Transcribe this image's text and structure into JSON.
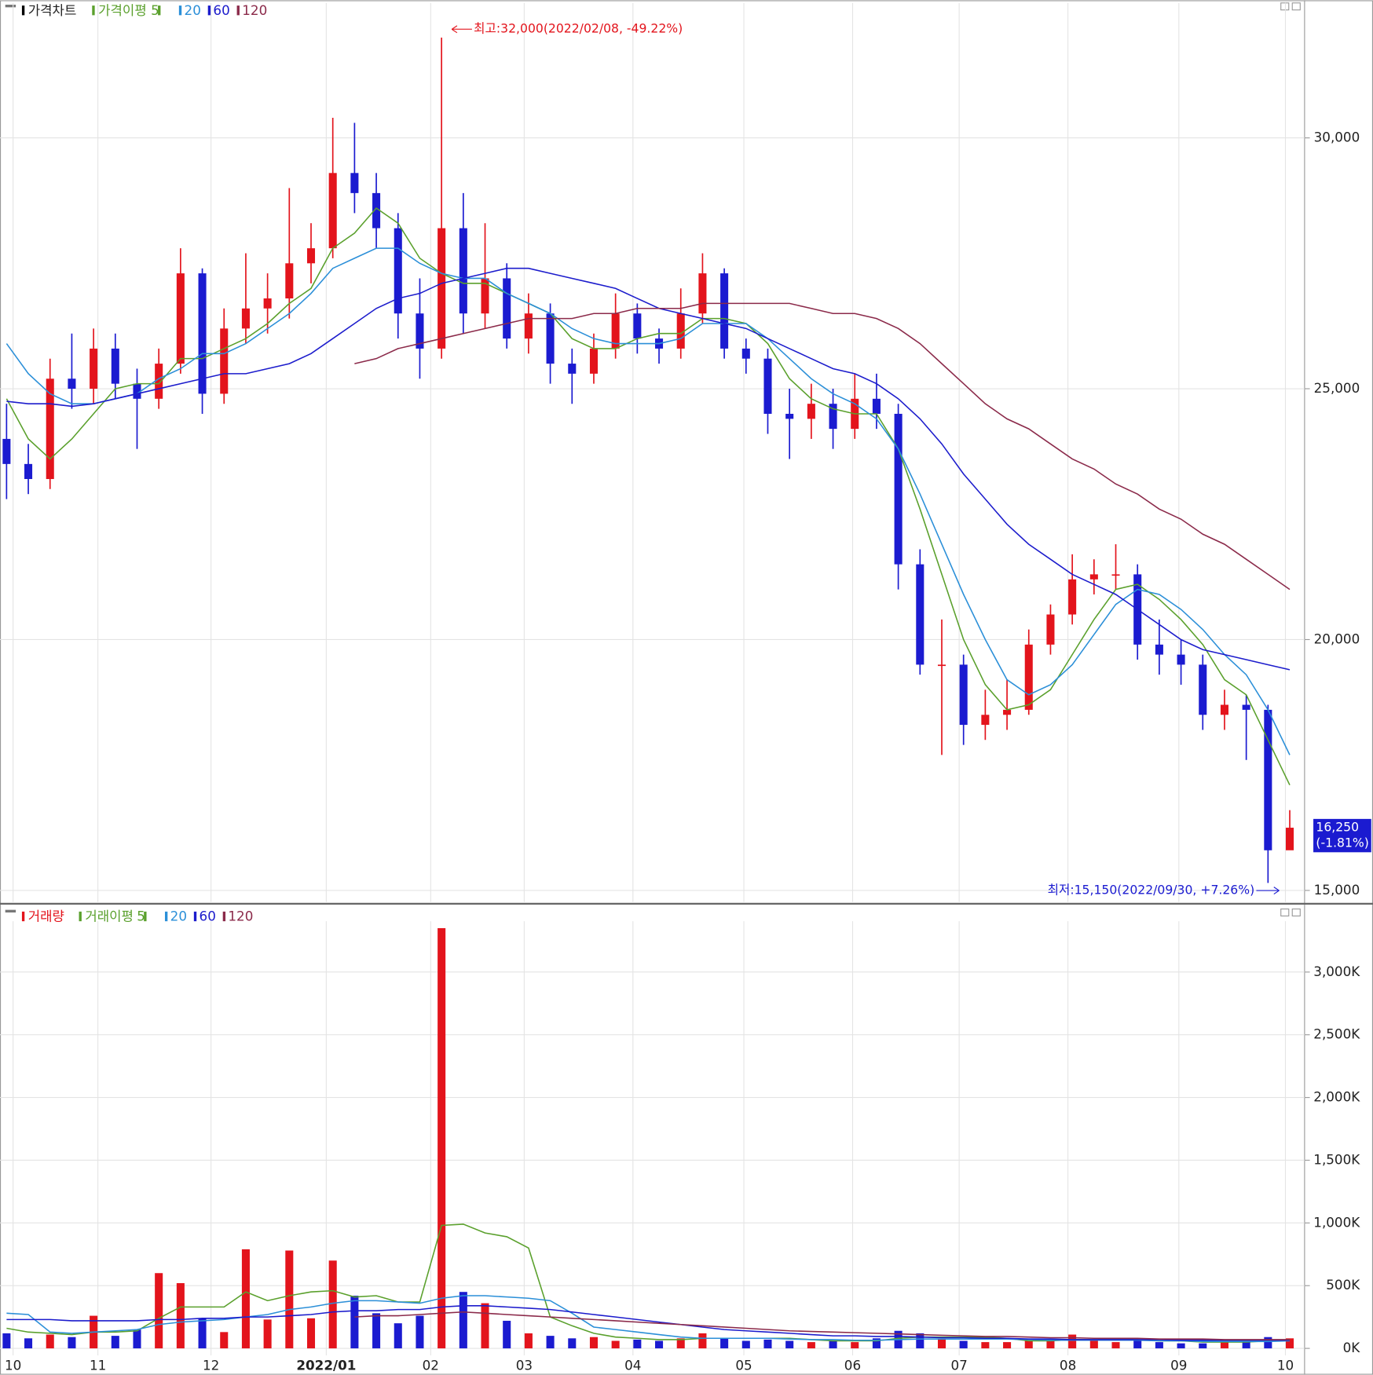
{
  "chart_data": [
    {
      "type": "candlestick",
      "title": "가격차트",
      "ma_title": "가격이평",
      "xlim": [
        -0.1,
        59.6
      ],
      "open": [
        24000,
        23500,
        23200,
        25200,
        25000,
        25800,
        25100,
        24800,
        25500,
        27300,
        24900,
        26200,
        26600,
        26800,
        27500,
        27800,
        29300,
        28900,
        28200,
        26500,
        25800,
        28200,
        26500,
        27200,
        26000,
        26500,
        25500,
        25300,
        25800,
        26500,
        26000,
        25800,
        26500,
        27300,
        25800,
        25600,
        24500,
        24400,
        24700,
        24200,
        24800,
        24500,
        21500,
        19500,
        19500,
        18300,
        18500,
        18600,
        19900,
        20500,
        21200,
        21300,
        21300,
        19900,
        19700,
        19500,
        18500,
        18700,
        18600,
        15800
      ],
      "high": [
        24700,
        23900,
        25600,
        26100,
        26200,
        26100,
        25400,
        25800,
        27800,
        27400,
        26600,
        27700,
        27300,
        29000,
        28300,
        30400,
        30300,
        29300,
        28500,
        27200,
        32000,
        28900,
        28300,
        27500,
        26900,
        26700,
        25800,
        26100,
        26900,
        26700,
        26200,
        27000,
        27700,
        27400,
        26000,
        25800,
        25000,
        25100,
        25000,
        25300,
        25300,
        24700,
        21800,
        20400,
        19700,
        19000,
        19200,
        20200,
        20700,
        21700,
        21600,
        21900,
        21500,
        20400,
        20000,
        19700,
        19000,
        18900,
        18700,
        16600
      ],
      "low": [
        22800,
        22900,
        23000,
        24600,
        24700,
        24800,
        23800,
        24600,
        25300,
        24500,
        24700,
        25900,
        26100,
        26400,
        27100,
        27600,
        28500,
        27800,
        26000,
        25200,
        25600,
        26100,
        26200,
        25800,
        25700,
        25100,
        24700,
        25100,
        25600,
        25700,
        25500,
        25600,
        26300,
        25600,
        25300,
        24100,
        23600,
        24000,
        23800,
        24000,
        24200,
        21000,
        19300,
        17700,
        17900,
        18000,
        18200,
        18500,
        19700,
        20300,
        20900,
        21000,
        19600,
        19300,
        19100,
        18200,
        18200,
        17600,
        15150,
        15900
      ],
      "close": [
        23500,
        23200,
        25200,
        25000,
        25800,
        25100,
        24800,
        25500,
        27300,
        24900,
        26200,
        26600,
        26800,
        27500,
        27800,
        29300,
        28900,
        28200,
        26500,
        25800,
        28200,
        26500,
        27200,
        26000,
        26500,
        25500,
        25300,
        25800,
        26500,
        26000,
        25800,
        26500,
        27300,
        25800,
        25600,
        24500,
        24400,
        24700,
        24200,
        24800,
        24500,
        21500,
        19500,
        19500,
        18300,
        18500,
        18600,
        19900,
        20500,
        21200,
        21300,
        21300,
        19900,
        19700,
        19500,
        18500,
        18700,
        18600,
        15800,
        16250
      ],
      "up_color": "#e3141c",
      "down_color": "#1b1bd0",
      "series": [
        {
          "name": "5",
          "color": "#5aa02c",
          "values": [
            24800,
            24000,
            23600,
            24000,
            24500,
            25000,
            25100,
            25100,
            25600,
            25600,
            25800,
            26000,
            26300,
            26700,
            27000,
            27800,
            28100,
            28600,
            28300,
            27600,
            27300,
            27100,
            27100,
            26900,
            26700,
            26500,
            26000,
            25800,
            25800,
            26000,
            26100,
            26100,
            26400,
            26400,
            26300,
            25900,
            25200,
            24800,
            24600,
            24500,
            24500,
            23800,
            22600,
            21300,
            20000,
            19100,
            18600,
            18700,
            19000,
            19700,
            20400,
            21000,
            21100,
            20800,
            20400,
            19900,
            19200,
            18900,
            18000,
            17100
          ]
        },
        {
          "name": "20",
          "color": "#2b8fd8",
          "values": [
            25900,
            25300,
            24900,
            24700,
            24700,
            24800,
            24900,
            25200,
            25400,
            25700,
            25700,
            25900,
            26200,
            26500,
            26900,
            27400,
            27600,
            27800,
            27800,
            27500,
            27300,
            27200,
            27200,
            26900,
            26700,
            26500,
            26200,
            26000,
            25900,
            25900,
            25900,
            26000,
            26300,
            26300,
            26300,
            26000,
            25600,
            25200,
            24900,
            24700,
            24400,
            23800,
            22900,
            21900,
            20900,
            20000,
            19200,
            18900,
            19100,
            19500,
            20100,
            20700,
            21000,
            20900,
            20600,
            20200,
            19700,
            19300,
            18600,
            17700
          ]
        },
        {
          "name": "60",
          "color": "#1c1ccc",
          "values": [
            24750,
            24700,
            24700,
            24650,
            24700,
            24800,
            24900,
            25000,
            25100,
            25200,
            25300,
            25300,
            25400,
            25500,
            25700,
            26000,
            26300,
            26600,
            26800,
            26900,
            27100,
            27200,
            27300,
            27400,
            27400,
            27300,
            27200,
            27100,
            27000,
            26800,
            26600,
            26500,
            26400,
            26300,
            26200,
            26000,
            25800,
            25600,
            25400,
            25300,
            25100,
            24800,
            24400,
            23900,
            23300,
            22800,
            22300,
            21900,
            21600,
            21300,
            21100,
            20900,
            20600,
            20300,
            20000,
            19800,
            19700,
            19600,
            19500,
            19400
          ]
        },
        {
          "name": "120",
          "color": "#8b2a4a",
          "values": [
            null,
            null,
            null,
            null,
            null,
            null,
            null,
            null,
            null,
            null,
            null,
            null,
            null,
            null,
            null,
            null,
            25500,
            25600,
            25800,
            25900,
            26000,
            26100,
            26200,
            26300,
            26400,
            26400,
            26400,
            26500,
            26500,
            26600,
            26600,
            26600,
            26700,
            26700,
            26700,
            26700,
            26700,
            26600,
            26500,
            26500,
            26400,
            26200,
            25900,
            25500,
            25100,
            24700,
            24400,
            24200,
            23900,
            23600,
            23400,
            23100,
            22900,
            22600,
            22400,
            22100,
            21900,
            21600,
            21300,
            21000
          ]
        }
      ],
      "ylim": [
        14770,
        32690
      ],
      "yticks": [
        {
          "value": 15000,
          "label": "15,000"
        },
        {
          "value": 20000,
          "label": "20,000"
        },
        {
          "value": 25000,
          "label": "25,000"
        },
        {
          "value": 30000,
          "label": "30,000"
        }
      ],
      "annotations": [
        "최고:32,000(2022/02/08, -49.22%)",
        "최저:15,150(2022/09/30, +7.26%)"
      ],
      "last_price": {
        "value": 16250,
        "label": "16,250",
        "change": "(-1.81%)"
      }
    },
    {
      "type": "bar",
      "title": "거래량",
      "ma_title": "거래이평",
      "values": [
        120,
        80,
        110,
        90,
        260,
        100,
        150,
        600,
        520,
        240,
        130,
        790,
        230,
        780,
        240,
        700,
        420,
        280,
        200,
        260,
        3350,
        450,
        360,
        220,
        120,
        100,
        80,
        90,
        60,
        70,
        60,
        80,
        120,
        80,
        60,
        70,
        60,
        50,
        60,
        50,
        80,
        140,
        120,
        80,
        60,
        50,
        50,
        60,
        70,
        110,
        60,
        50,
        70,
        50,
        40,
        40,
        50,
        60,
        90,
        80
      ],
      "series": [
        {
          "name": "5",
          "color": "#5aa02c",
          "values": [
            160,
            130,
            120,
            110,
            130,
            130,
            140,
            240,
            330,
            330,
            330,
            450,
            380,
            420,
            450,
            460,
            410,
            420,
            370,
            370,
            980,
            990,
            920,
            890,
            800,
            250,
            180,
            120,
            90,
            80,
            70,
            70,
            80,
            80,
            80,
            80,
            80,
            70,
            60,
            60,
            60,
            80,
            90,
            90,
            90,
            90,
            80,
            60,
            60,
            70,
            70,
            70,
            70,
            60,
            60,
            50,
            50,
            50,
            60,
            70
          ]
        },
        {
          "name": "20",
          "color": "#2b8fd8",
          "values": [
            280,
            270,
            130,
            120,
            130,
            140,
            150,
            190,
            210,
            220,
            230,
            250,
            270,
            310,
            330,
            360,
            380,
            380,
            370,
            360,
            400,
            420,
            420,
            410,
            400,
            380,
            280,
            170,
            150,
            130,
            110,
            90,
            80,
            80,
            80,
            80,
            75,
            70,
            70,
            65,
            65,
            70,
            75,
            75,
            75,
            75,
            75,
            70,
            65,
            65,
            65,
            65,
            65,
            60,
            60,
            55,
            55,
            55,
            55,
            60
          ]
        },
        {
          "name": "60",
          "color": "#1c1ccc",
          "values": [
            230,
            230,
            230,
            220,
            220,
            220,
            220,
            230,
            230,
            240,
            240,
            250,
            250,
            260,
            270,
            290,
            300,
            300,
            310,
            310,
            330,
            340,
            340,
            330,
            320,
            310,
            290,
            270,
            250,
            230,
            210,
            190,
            170,
            150,
            140,
            130,
            120,
            110,
            100,
            100,
            95,
            95,
            90,
            85,
            85,
            80,
            80,
            75,
            75,
            70,
            70,
            70,
            70,
            70,
            65,
            65,
            65,
            65,
            65,
            65
          ]
        },
        {
          "name": "120",
          "color": "#8b2a4a",
          "values": [
            null,
            null,
            null,
            null,
            null,
            null,
            null,
            null,
            null,
            null,
            null,
            null,
            null,
            null,
            null,
            null,
            250,
            260,
            260,
            270,
            280,
            290,
            280,
            270,
            260,
            250,
            240,
            230,
            220,
            210,
            200,
            190,
            180,
            170,
            160,
            150,
            140,
            135,
            130,
            125,
            120,
            115,
            110,
            105,
            100,
            95,
            95,
            90,
            85,
            85,
            80,
            80,
            80,
            75,
            75,
            75,
            70,
            70,
            70,
            70
          ]
        }
      ],
      "ylim": [
        -56,
        3405
      ],
      "yticks": [
        {
          "value": 0,
          "label": "0K"
        },
        {
          "value": 500,
          "label": "500K"
        },
        {
          "value": 1000,
          "label": "1,000K"
        },
        {
          "value": 1500,
          "label": "1,500K"
        },
        {
          "value": 2000,
          "label": "2,000K"
        },
        {
          "value": 2500,
          "label": "2,500K"
        },
        {
          "value": 3000,
          "label": "3,000K"
        }
      ],
      "xticks": [
        {
          "value": 0.3,
          "label": "10"
        },
        {
          "value": 4.2,
          "label": "11"
        },
        {
          "value": 9.4,
          "label": "12"
        },
        {
          "value": 14.7,
          "label": "2022/01"
        },
        {
          "value": 19.5,
          "label": "02"
        },
        {
          "value": 23.8,
          "label": "03"
        },
        {
          "value": 28.8,
          "label": "04"
        },
        {
          "value": 33.9,
          "label": "05"
        },
        {
          "value": 38.9,
          "label": "06"
        },
        {
          "value": 43.8,
          "label": "07"
        },
        {
          "value": 48.8,
          "label": "08"
        },
        {
          "value": 53.9,
          "label": "09"
        },
        {
          "value": 58.8,
          "label": "10"
        }
      ]
    }
  ]
}
